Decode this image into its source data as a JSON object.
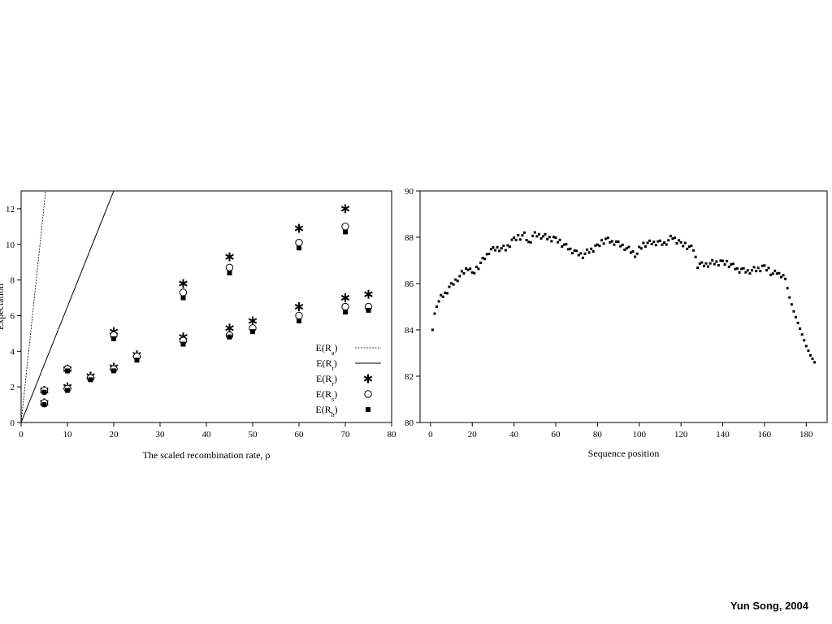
{
  "credit": "Yun Song, 2004",
  "chart_data": [
    {
      "type": "scatter",
      "xlabel": "The scaled recombination rate, ρ",
      "ylabel": "Expectation",
      "xlim": [
        0,
        80
      ],
      "ylim": [
        0,
        13
      ],
      "xticks": [
        0,
        10,
        20,
        30,
        40,
        50,
        60,
        70,
        80
      ],
      "yticks": [
        0,
        2,
        4,
        6,
        8,
        10,
        12
      ],
      "legend": "bottom-right",
      "series": [
        {
          "name": "E(Ra)",
          "sub": "a",
          "style": "dashed-line",
          "x": [
            0,
            5.3
          ],
          "y": [
            0,
            13
          ]
        },
        {
          "name": "E(Rt)",
          "sub": "t",
          "style": "solid-line",
          "x": [
            0,
            20.0
          ],
          "y": [
            0,
            13
          ]
        },
        {
          "name": "E(Rr)",
          "sub": "r",
          "style": "star",
          "x": [
            5,
            5,
            10,
            10,
            15,
            20,
            20,
            25,
            35,
            35,
            45,
            45,
            50,
            60,
            60,
            70,
            70,
            75
          ],
          "y": [
            1.8,
            1.1,
            3.0,
            2.0,
            2.6,
            5.1,
            3.1,
            3.8,
            7.8,
            4.8,
            9.3,
            5.3,
            5.7,
            10.9,
            6.5,
            12.0,
            7.0,
            7.2
          ]
        },
        {
          "name": "E(Rs)",
          "sub": "s",
          "style": "circle",
          "x": [
            5,
            5,
            10,
            10,
            15,
            20,
            20,
            25,
            35,
            35,
            45,
            45,
            50,
            60,
            60,
            70,
            70,
            75
          ],
          "y": [
            1.8,
            1.1,
            3.0,
            1.9,
            2.5,
            4.9,
            3.0,
            3.7,
            7.3,
            4.6,
            8.7,
            4.9,
            5.3,
            10.1,
            6.0,
            11.0,
            6.5,
            6.5
          ]
        },
        {
          "name": "E(Rh)",
          "sub": "h",
          "style": "square",
          "x": [
            5,
            5,
            10,
            10,
            15,
            20,
            20,
            25,
            35,
            35,
            45,
            45,
            50,
            60,
            60,
            70,
            70,
            75
          ],
          "y": [
            1.7,
            1.0,
            2.9,
            1.8,
            2.4,
            4.7,
            2.9,
            3.5,
            7.0,
            4.4,
            8.4,
            4.8,
            5.1,
            9.8,
            5.7,
            10.7,
            6.2,
            6.3
          ]
        }
      ]
    },
    {
      "type": "scatter",
      "xlabel": "Sequence position",
      "ylabel": "",
      "xlim": [
        -5,
        190
      ],
      "ylim": [
        80,
        90
      ],
      "xticks": [
        0,
        20,
        40,
        60,
        80,
        100,
        120,
        140,
        160,
        180
      ],
      "yticks": [
        80,
        82,
        84,
        86,
        88,
        90
      ],
      "series": [
        {
          "name": "",
          "style": "small-square",
          "anchors_x": [
            1,
            2,
            3,
            5,
            8,
            12,
            16,
            18,
            20,
            22,
            25,
            28,
            32,
            36,
            40,
            43,
            45,
            47,
            50,
            55,
            60,
            63,
            67,
            70,
            73,
            76,
            80,
            84,
            88,
            92,
            96,
            99,
            100,
            103,
            107,
            112,
            116,
            120,
            123,
            126,
            128,
            132,
            136,
            140,
            144,
            148,
            152,
            156,
            160,
            164,
            166,
            168,
            170,
            172,
            174,
            176,
            178,
            180,
            182,
            184
          ],
          "anchors_y": [
            84.0,
            84.7,
            85.0,
            85.4,
            85.7,
            86.1,
            86.5,
            86.7,
            86.4,
            86.6,
            87.0,
            87.4,
            87.5,
            87.5,
            87.9,
            88.0,
            88.1,
            87.8,
            88.1,
            88.0,
            87.9,
            87.7,
            87.5,
            87.3,
            87.2,
            87.4,
            87.6,
            87.9,
            87.8,
            87.6,
            87.4,
            87.2,
            87.5,
            87.7,
            87.8,
            87.7,
            88.0,
            87.7,
            87.6,
            87.5,
            86.8,
            86.8,
            86.9,
            86.9,
            86.8,
            86.6,
            86.5,
            86.6,
            86.7,
            86.4,
            86.5,
            86.4,
            86.2,
            85.4,
            84.8,
            84.3,
            83.8,
            83.3,
            82.9,
            82.6
          ],
          "jitter": [
            0.08,
            -0.05,
            0.12,
            -0.1,
            0.03,
            0.1,
            -0.07,
            0.0,
            -0.12,
            0.06,
            0.11,
            -0.04,
            0.07,
            -0.09,
            0.02,
            0.13,
            -0.06,
            0.05,
            -0.11,
            0.09
          ]
        }
      ]
    }
  ]
}
